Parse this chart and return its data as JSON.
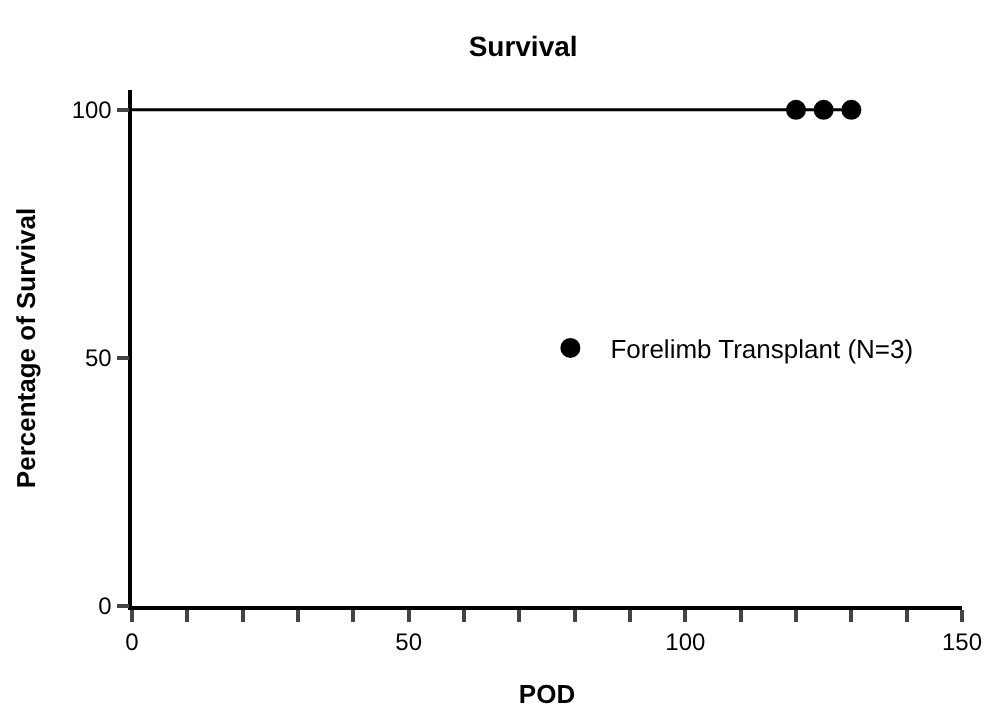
{
  "chart_data": {
    "type": "step",
    "title": "Survival",
    "xlabel": "POD",
    "ylabel": "Percentage of Survival",
    "series": [
      {
        "color": "#000000",
        "x": [
          0,
          130
        ],
        "values": [
          100,
          100
        ],
        "marker": "none"
      },
      {
        "type": "scatter",
        "name": "Forelimb Transplant (N=3)",
        "color": "#000000",
        "x": [
          120,
          125,
          130
        ],
        "values": [
          100,
          100,
          100
        ],
        "marker": "circle"
      }
    ],
    "xlim": [
      0,
      150
    ],
    "ylim": [
      0,
      104
    ],
    "xticks": [
      0,
      {
        "value": 10,
        "label": null
      },
      {
        "value": 20,
        "label": null
      },
      {
        "value": 30,
        "label": null
      },
      {
        "value": 40,
        "label": null
      },
      50,
      {
        "value": 60,
        "label": null
      },
      {
        "value": 70,
        "label": null
      },
      {
        "value": 80,
        "label": null
      },
      {
        "value": 90,
        "label": null
      },
      100,
      {
        "value": 110,
        "label": null
      },
      {
        "value": 120,
        "label": null
      },
      {
        "value": 130,
        "label": null
      },
      {
        "value": 140,
        "label": null
      },
      150
    ],
    "yticks": [
      0,
      50,
      100
    ],
    "legend": "right"
  }
}
